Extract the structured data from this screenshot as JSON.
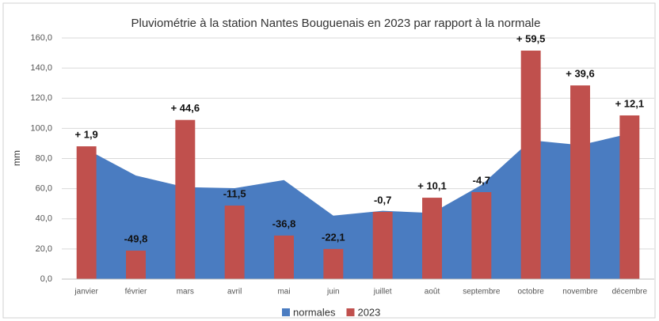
{
  "chart_data": {
    "type": "combo",
    "title": "Pluviométrie à la station Nantes Bouguenais en 2023 par rapport à la normale",
    "y_label": "mm",
    "categories": [
      "janvier",
      "février",
      "mars",
      "avril",
      "mai",
      "juin",
      "juillet",
      "août",
      "septembre",
      "octobre",
      "novembre",
      "décembre"
    ],
    "series": [
      {
        "name": "normales",
        "type": "area",
        "color": "#4a7cc1",
        "values": [
          86.2,
          68.7,
          61,
          60.3,
          65.7,
          42.1,
          45.3,
          43.9,
          62.4,
          92.1,
          88.9,
          96.5
        ]
      },
      {
        "name": "2023",
        "type": "bar",
        "color": "#c0504d",
        "values": [
          88.1,
          18.9,
          105.6,
          48.8,
          28.9,
          20,
          44.6,
          54,
          57.7,
          151.6,
          128.5,
          108.6
        ],
        "annotations": [
          "+ 1,9",
          "-49,8",
          "+ 44,6",
          "-11,5",
          "-36,8",
          "-22,1",
          "-0,7",
          "+ 10,1",
          "-4,7",
          "+ 59,5",
          "+ 39,6",
          "+ 12,1"
        ]
      }
    ],
    "ylim": [
      0,
      160
    ],
    "yticks": [
      {
        "value": 0,
        "label": "0,0"
      },
      {
        "value": 20,
        "label": "20,0"
      },
      {
        "value": 40,
        "label": "40,0"
      },
      {
        "value": 60,
        "label": "60,0"
      },
      {
        "value": 80,
        "label": "80,0"
      },
      {
        "value": 100,
        "label": "100,0"
      },
      {
        "value": 120,
        "label": "120,0"
      },
      {
        "value": 140,
        "label": "140,0"
      },
      {
        "value": 160,
        "label": "160,0"
      }
    ],
    "grid": true,
    "legend": "bottom"
  }
}
